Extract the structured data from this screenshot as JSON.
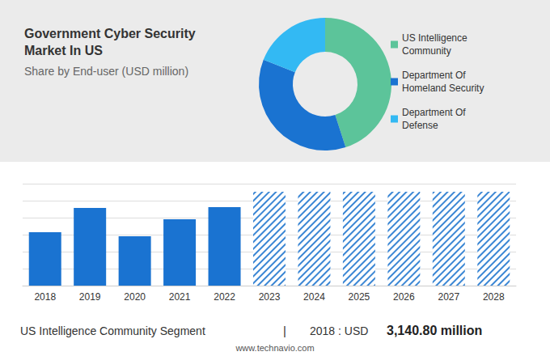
{
  "chart_data": [
    {
      "type": "pie",
      "title": "Government Cyber Security Market In US",
      "subtitle": "Share by End-user (USD million)",
      "categories": [
        "US Intelligence Community",
        "Department Of Homeland Security",
        "Department Of Defense"
      ],
      "values": [
        45,
        36,
        19
      ],
      "colors": [
        "#5cc49a",
        "#1a73d1",
        "#33b9f3"
      ],
      "legend": "right"
    },
    {
      "type": "bar",
      "categories": [
        "2018",
        "2019",
        "2020",
        "2021",
        "2022",
        "2023",
        "2024",
        "2025",
        "2026",
        "2027",
        "2028"
      ],
      "series": [
        {
          "color": "#1a73d1",
          "values": [
            3140.8,
            4570,
            2900,
            3900,
            4620,
            null,
            null,
            null,
            null,
            null,
            null
          ]
        },
        {
          "color": "#3a86d4",
          "marker": "hatched",
          "values": [
            null,
            null,
            null,
            null,
            null,
            5520,
            5520,
            5520,
            5520,
            5520,
            5520
          ]
        }
      ],
      "ylim": [
        0,
        6000
      ],
      "yticks": [
        0,
        1000,
        2000,
        3000,
        4000,
        5000,
        6000
      ],
      "grid": true,
      "tick_labels": "x",
      "annotations": [
        "US Intelligence Community Segment",
        "|",
        "2018 : USD",
        "3,140.80 million",
        "www.technavio.com"
      ]
    }
  ]
}
